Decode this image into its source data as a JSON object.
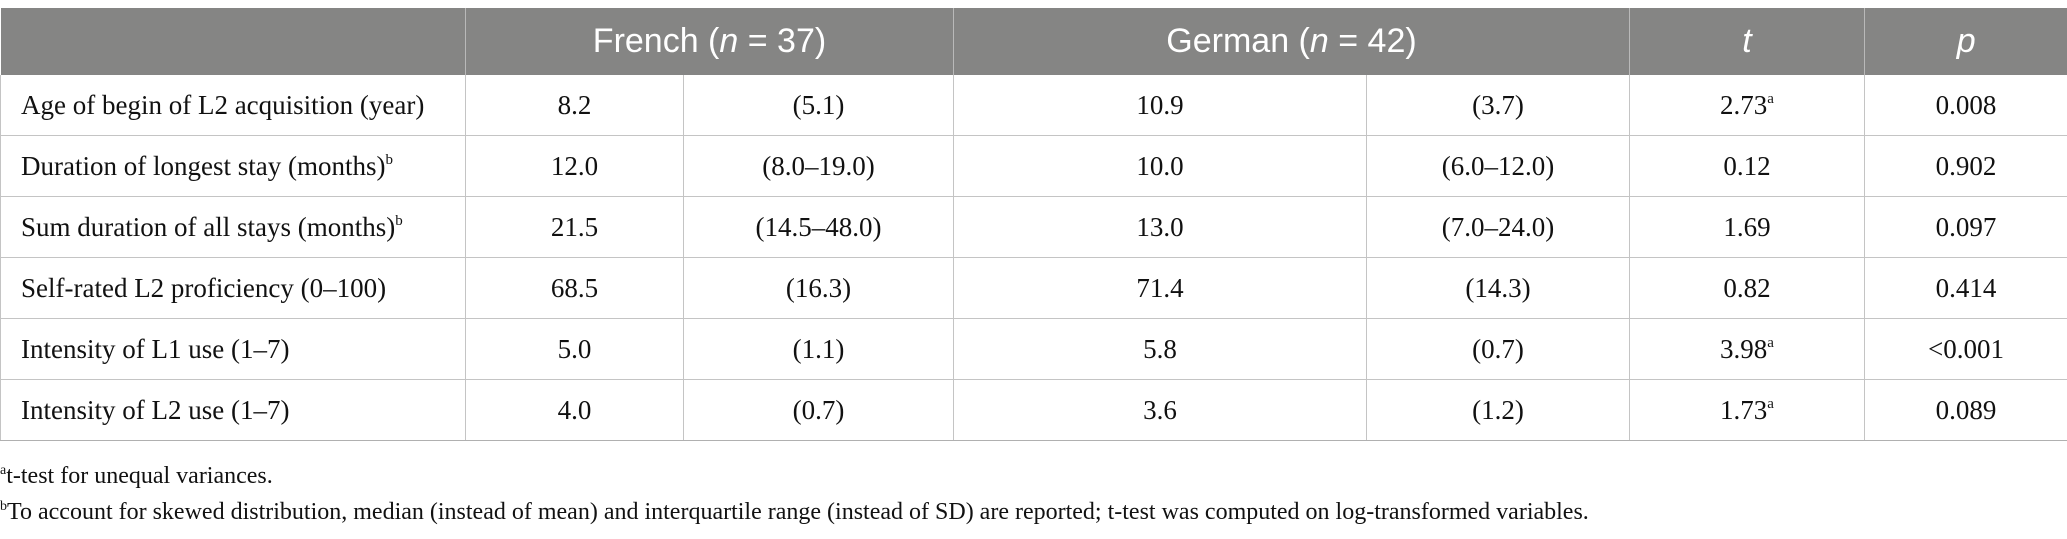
{
  "table": {
    "header": {
      "blank": "",
      "french": {
        "prefix": "French (",
        "n": "n",
        "suffix": " = 37)"
      },
      "german": {
        "prefix": "German (",
        "n": "n",
        "suffix": " = 42)"
      },
      "t": "t",
      "p": "p"
    },
    "rows": [
      {
        "label": "Age of begin of L2 acquisition (year)",
        "label_sup": "",
        "fr_value": "8.2",
        "fr_spread": "(5.1)",
        "de_value": "10.9",
        "de_spread": "(3.7)",
        "t": "2.73",
        "t_sup": "a",
        "p": "0.008"
      },
      {
        "label": "Duration of longest stay (months)",
        "label_sup": "b",
        "fr_value": "12.0",
        "fr_spread": "(8.0–19.0)",
        "de_value": "10.0",
        "de_spread": "(6.0–12.0)",
        "t": "0.12",
        "t_sup": "",
        "p": "0.902"
      },
      {
        "label": "Sum duration of all stays (months)",
        "label_sup": "b",
        "fr_value": "21.5",
        "fr_spread": "(14.5–48.0)",
        "de_value": "13.0",
        "de_spread": "(7.0–24.0)",
        "t": "1.69",
        "t_sup": "",
        "p": "0.097"
      },
      {
        "label": "Self-rated L2 proficiency (0–100)",
        "label_sup": "",
        "fr_value": "68.5",
        "fr_spread": "(16.3)",
        "de_value": "71.4",
        "de_spread": "(14.3)",
        "t": "0.82",
        "t_sup": "",
        "p": "0.414"
      },
      {
        "label": "Intensity of L1 use (1–7)",
        "label_sup": "",
        "fr_value": "5.0",
        "fr_spread": "(1.1)",
        "de_value": "5.8",
        "de_spread": "(0.7)",
        "t": "3.98",
        "t_sup": "a",
        "p": "<0.001"
      },
      {
        "label": "Intensity of L2 use (1–7)",
        "label_sup": "",
        "fr_value": "4.0",
        "fr_spread": "(0.7)",
        "de_value": "3.6",
        "de_spread": "(1.2)",
        "t": "1.73",
        "t_sup": "a",
        "p": "0.089"
      }
    ]
  },
  "footnotes": [
    {
      "mark": "a",
      "text": "t-test for unequal variances."
    },
    {
      "mark": "b",
      "text": "To account for skewed distribution, median (instead of mean) and interquartile range (instead of SD) are reported; t-test was computed on log-transformed variables."
    }
  ]
}
